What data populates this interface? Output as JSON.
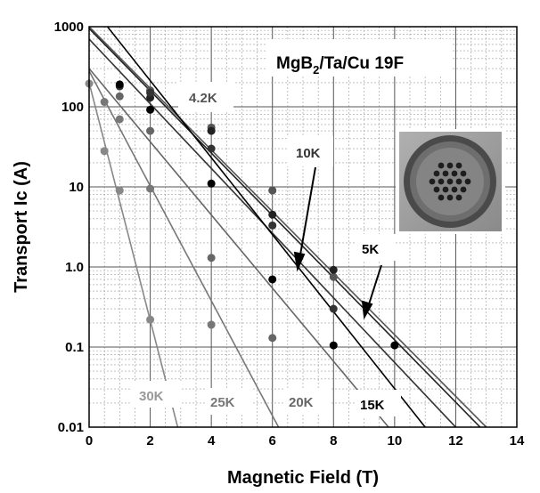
{
  "chart_data": {
    "type": "scatter",
    "title": "MgB2/Ta/Cu 19F",
    "title_main": "MgB",
    "title_sub": "2",
    "title_rest": "/Ta/Cu 19F",
    "xlabel": "Magnetic Field (T)",
    "ylabel": "Transport Ic (A)",
    "xlim": [
      0,
      14
    ],
    "ylim": [
      0.01,
      1000
    ],
    "yscale": "log",
    "grid": true,
    "x_ticks": [
      "0",
      "2",
      "4",
      "6",
      "8",
      "10",
      "12",
      "14"
    ],
    "y_ticks": [
      "0.01",
      "0.1",
      "1.0",
      "10",
      "100",
      "1000"
    ],
    "inset": "wire cross-section micrograph",
    "series": [
      {
        "name": "4.2K",
        "color": "#555555",
        "points": [
          [
            2,
            160
          ],
          [
            4,
            55
          ],
          [
            6,
            9
          ],
          [
            8,
            0.75
          ]
        ],
        "fit": [
          [
            0,
            1000
          ],
          [
            13,
            0.01
          ]
        ]
      },
      {
        "name": "5K",
        "color": "#222222",
        "points": [
          [
            2,
            130
          ],
          [
            4,
            50
          ],
          [
            6,
            4.5
          ],
          [
            8,
            0.92
          ]
        ],
        "fit": [
          [
            0,
            950
          ],
          [
            12.8,
            0.01
          ]
        ]
      },
      {
        "name": "10K",
        "color": "#333333",
        "points": [
          [
            1,
            180
          ],
          [
            2,
            150
          ],
          [
            4,
            30
          ],
          [
            6,
            3.3
          ],
          [
            8,
            0.3
          ]
        ],
        "fit": [
          [
            0,
            700
          ],
          [
            12,
            0.01
          ]
        ]
      },
      {
        "name": "15K",
        "color": "#000000",
        "points": [
          [
            1,
            190
          ],
          [
            2,
            92
          ],
          [
            4,
            11
          ],
          [
            6,
            0.7
          ],
          [
            8,
            0.105
          ],
          [
            10,
            0.105
          ]
        ],
        "fit": [
          [
            0.6,
            1000
          ],
          [
            11,
            0.01
          ]
        ]
      },
      {
        "name": "20K",
        "color": "#666666",
        "points": [
          [
            1,
            135
          ],
          [
            2,
            50
          ],
          [
            4,
            1.3
          ],
          [
            6,
            0.13
          ]
        ],
        "fit": [
          [
            0,
            300
          ],
          [
            9.8,
            0.01
          ]
        ]
      },
      {
        "name": "25K",
        "color": "#777777",
        "points": [
          [
            0.5,
            115
          ],
          [
            1,
            70
          ],
          [
            2,
            9.5
          ],
          [
            4,
            0.19
          ]
        ],
        "fit": [
          [
            0,
            280
          ],
          [
            6.2,
            0.01
          ]
        ]
      },
      {
        "name": "30K",
        "color": "#888888",
        "points": [
          [
            0,
            195
          ],
          [
            0.5,
            28
          ],
          [
            1,
            9
          ],
          [
            2,
            0.22
          ]
        ],
        "fit": [
          [
            0,
            200
          ],
          [
            2.9,
            0.01
          ]
        ]
      }
    ],
    "labels": [
      {
        "text": "4.2K",
        "color": "#555555"
      },
      {
        "text": "10K",
        "color": "#333333"
      },
      {
        "text": "5K",
        "color": "#000000"
      },
      {
        "text": "30K",
        "color": "#999999"
      },
      {
        "text": "25K",
        "color": "#777777"
      },
      {
        "text": "20K",
        "color": "#666666"
      },
      {
        "text": "15K",
        "color": "#000000"
      }
    ]
  }
}
